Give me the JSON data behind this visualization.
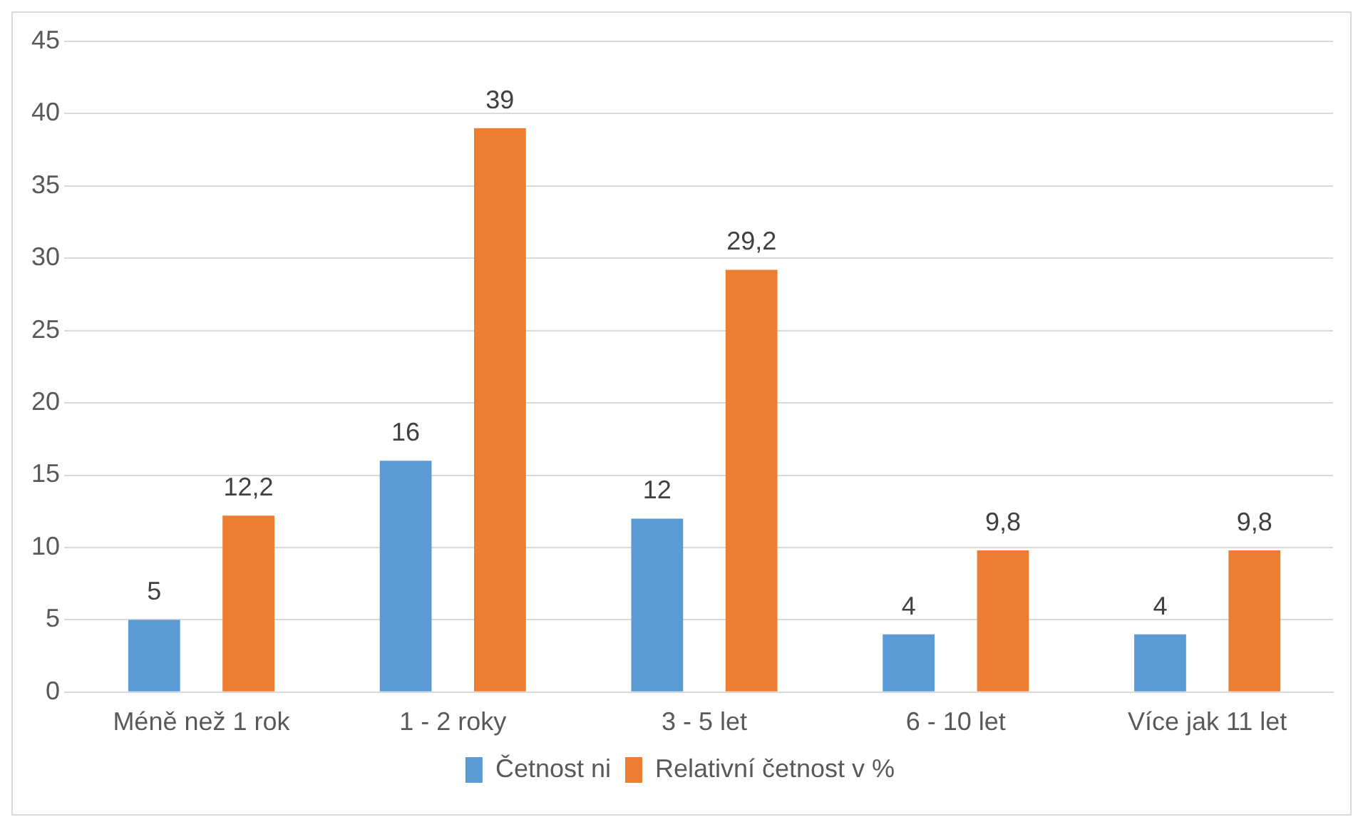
{
  "chart_data": {
    "type": "bar",
    "categories": [
      "Méně než 1 rok",
      "1 - 2 roky",
      "3 - 5 let",
      "6 - 10 let",
      "Více jak 11 let"
    ],
    "series": [
      {
        "name": "Četnost ni",
        "color": "#5b9bd5",
        "values": [
          5,
          16,
          12,
          4,
          4
        ],
        "value_labels": [
          "5",
          "16",
          "12",
          "4",
          "4"
        ]
      },
      {
        "name": "Relativní četnost v %",
        "color": "#ed7d31",
        "values": [
          12.2,
          39,
          29.2,
          9.8,
          9.8
        ],
        "value_labels": [
          "12,2",
          "39",
          "29,2",
          "9,8",
          "9,8"
        ]
      }
    ],
    "ylim": [
      0,
      45
    ],
    "yticks": [
      0,
      5,
      10,
      15,
      20,
      25,
      30,
      35,
      40,
      45
    ],
    "grid": "y",
    "legend": "bottom"
  }
}
